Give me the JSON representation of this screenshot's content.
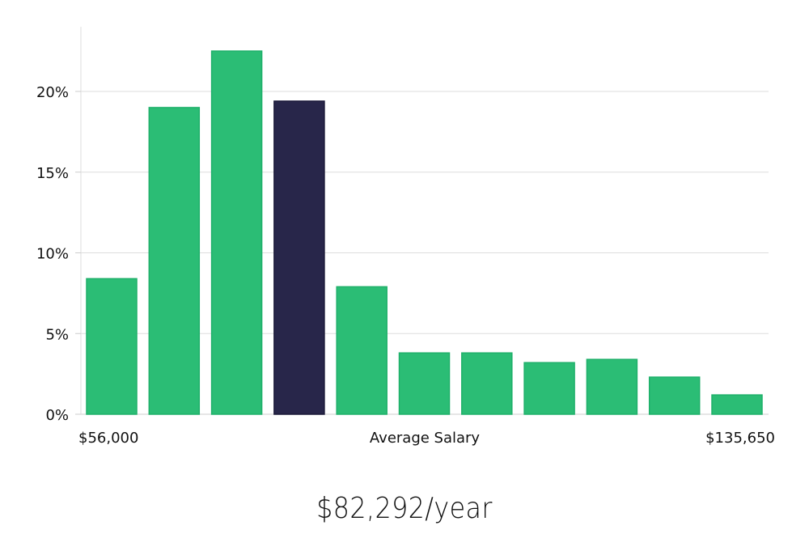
{
  "chart_data": {
    "type": "bar",
    "title": "",
    "xlabel": "Average Salary",
    "ylabel": "",
    "x_min_label": "$56,000",
    "x_max_label": "$135,650",
    "ylim": [
      0,
      23.5
    ],
    "y_ticks": [
      0,
      5,
      10,
      15,
      20
    ],
    "y_tick_labels": [
      "0%",
      "5%",
      "10%",
      "15%",
      "20%"
    ],
    "values": [
      8.4,
      19.0,
      22.5,
      19.4,
      7.9,
      3.8,
      3.8,
      3.2,
      3.4,
      2.3,
      1.2
    ],
    "highlight_index": 3,
    "colors": {
      "bar": "#2bbd75",
      "bar_stroke": "#1fb06a",
      "highlight": "#28264a",
      "highlight_stroke": "#1a1838",
      "grid": "#dddddd",
      "axis": "#cccccc"
    }
  },
  "salary": {
    "headline": "$82,292/year"
  }
}
